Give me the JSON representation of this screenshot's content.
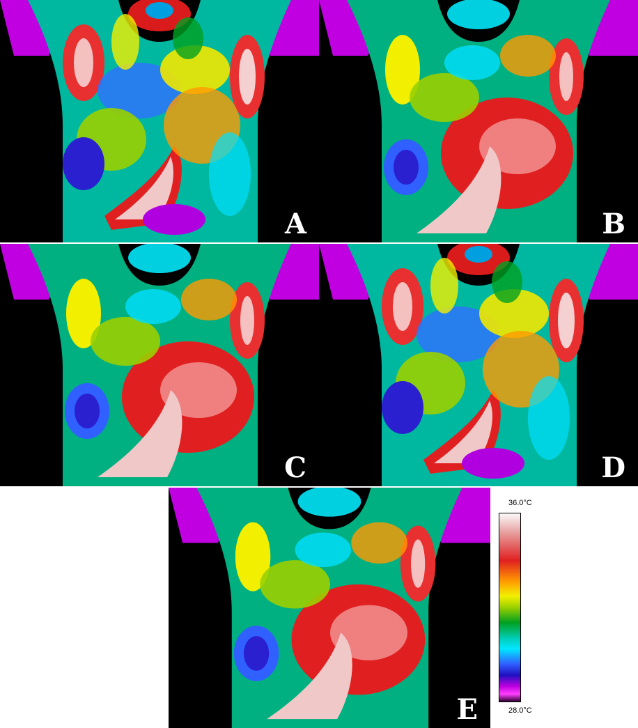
{
  "panels": [
    {
      "id": "a",
      "label": "A"
    },
    {
      "id": "b",
      "label": "B"
    },
    {
      "id": "c",
      "label": "C"
    },
    {
      "id": "d",
      "label": "D"
    },
    {
      "id": "e",
      "label": "E"
    }
  ],
  "colorbar": {
    "max_label": "36.0°C",
    "min_label": "28.0°C",
    "colors": [
      "#fbfbfb",
      "#e02020",
      "#ff9a00",
      "#f2f000",
      "#00a020",
      "#00e8ff",
      "#3060ff",
      "#c000e0",
      "#300030"
    ]
  }
}
